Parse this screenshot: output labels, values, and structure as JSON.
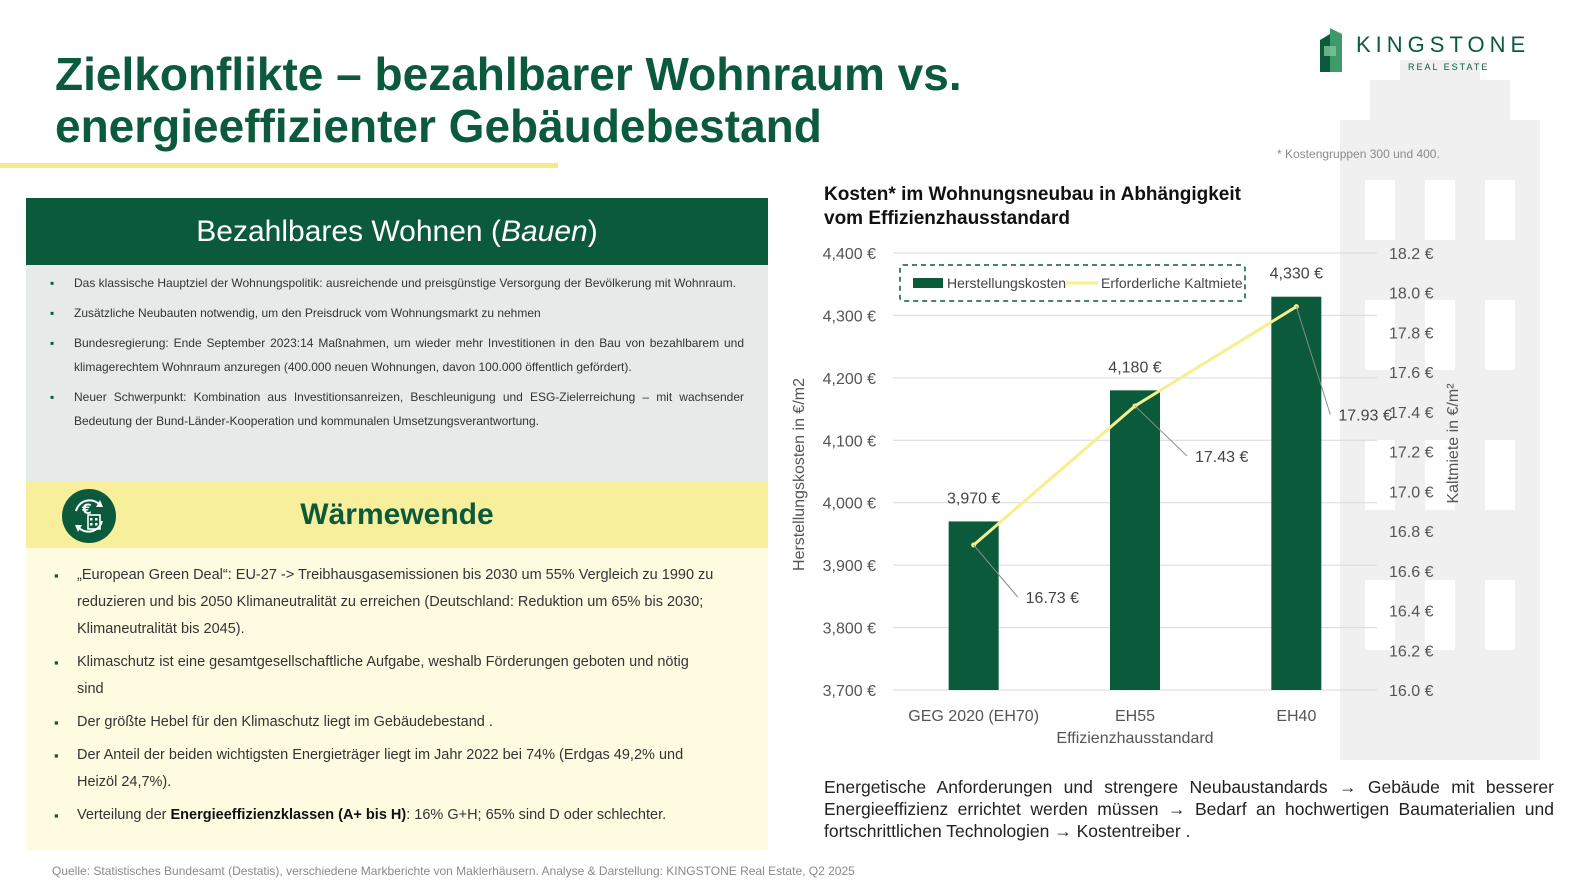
{
  "header": {
    "title_line1": "Zielkonflikte – bezahlbarer Wohnraum vs.",
    "title_line2": "energieeffizienter Gebäudebestand",
    "logo_name": "KINGSTONE",
    "logo_sub": "REAL ESTATE"
  },
  "footnote": "* Kostengruppen 300 und 400.",
  "panel_bauen": {
    "title_prefix": "Bezahlbares Wohnen (",
    "title_italic": "Bauen",
    "title_suffix": ")",
    "bullets": [
      "Das klassische Hauptziel der Wohnungspolitik: ausreichende und preisgünstige Versorgung der Bevölkerung mit Wohnraum.",
      "Zusätzliche Neubauten notwendig, um den Preisdruck vom Wohnungsmarkt zu nehmen",
      "Bundesregierung: Ende September 2023:14 Maßnahmen, um wieder mehr Investitionen in den Bau von bezahlbarem und klimagerechtem Wohnraum anzuregen (400.000 neuen Wohnungen, davon 100.000 öffentlich gefördert).",
      "Neuer Schwerpunkt: Kombination aus Investitionsanreizen, Beschleunigung und ESG-Zielerreichung – mit wachsender Bedeutung der Bund-Länder-Kooperation und kommunalen Umsetzungsverantwortung."
    ]
  },
  "panel_waerme": {
    "title": "Wärmewende",
    "icon": "euro-building-cycle-icon",
    "bullets": [
      "„European Green Deal“:  EU-27 -> Treibhausgasemissionen bis 2030 um 55% Vergleich zu 1990 zu reduzieren und bis 2050 Klimaneutralität zu erreichen (Deutschland: Reduktion um 65% bis 2030; Klimaneutralität bis 2045).",
      "Klimaschutz ist eine gesamtgesellschaftliche Aufgabe, weshalb Förderungen geboten und nötig sind",
      "Der größte Hebel für den Klimaschutz liegt im Gebäudebestand .",
      "Der Anteil der beiden wichtigsten Energieträger liegt im Jahr 2022 bei 74% (Erdgas 49,2% und Heizöl 24,7%)."
    ],
    "last_bullet_pre": "Verteilung der ",
    "last_bullet_bold": "Energieeffizienzklassen (A+ bis H)",
    "last_bullet_post": ": 16% G+H; 65% sind D oder schlechter."
  },
  "source": "Quelle: Statistisches Bundesamt (Destatis), verschiedene Markberichte von Maklerhäusern. Analyse & Darstellung: KINGSTONE Real Estate, Q2 2025",
  "chart_title_line1": "Kosten* im Wohnungsneubau in Abhängigkeit",
  "chart_title_line2": "vom Effizienzhausstandard",
  "conclusion": {
    "p1": "Energetische Anforderungen und strengere Neubaustandards",
    "p2": "Gebäude mit besserer Energieeffizienz  errichtet werden müssen",
    "p3": "Bedarf  an hochwertigen  Baumaterialien und  fortschrittlichen Technologien",
    "p4": "Kostentreiber .",
    "arrow": "→"
  },
  "colors": {
    "brand_green": "#0b5a3b",
    "accent_yellow": "#f8ef9c",
    "line_yellow": "#f7ee8c"
  },
  "chart_data": {
    "type": "bar",
    "title": "Kosten* im Wohnungsneubau in Abhängigkeit vom Effizienzhausstandard",
    "categories": [
      "GEG 2020 (EH70)",
      "EH55",
      "EH40"
    ],
    "xlabel": "Effizienzhausstandard",
    "ylabel": "Herstellungskosten in €/m2",
    "y2label": "Kaltmiete in €/m²",
    "ylim": [
      3700,
      4400
    ],
    "y_ticks": [
      3700,
      3800,
      3900,
      4000,
      4100,
      4200,
      4300,
      4400
    ],
    "y_tick_labels": [
      "3,700 €",
      "3,800 €",
      "3,900 €",
      "4,000 €",
      "4,100 €",
      "4,200 €",
      "4,300 €",
      "4,400 €"
    ],
    "y2lim": [
      16.0,
      18.2
    ],
    "y2_ticks": [
      16.0,
      16.2,
      16.4,
      16.6,
      16.8,
      17.0,
      17.2,
      17.4,
      17.6,
      17.8,
      18.0,
      18.2
    ],
    "y2_tick_labels": [
      "16.0 €",
      "16.2 €",
      "16.4 €",
      "16.6 €",
      "16.8 €",
      "17.0 €",
      "17.2 €",
      "17.4 €",
      "17.6 €",
      "17.8 €",
      "18.0 €",
      "18.2 €"
    ],
    "series": [
      {
        "name": "Herstellungskosten",
        "type": "bar",
        "axis": "left",
        "color": "#0b5a3b",
        "values": [
          3970,
          4180,
          4330
        ],
        "labels": [
          "3,970 €",
          "4,180 €",
          "4,330 €"
        ]
      },
      {
        "name": "Erforderliche Kaltmiete",
        "type": "line",
        "axis": "right",
        "color": "#f7ee8c",
        "values": [
          16.73,
          17.43,
          17.93
        ],
        "labels": [
          "16.73 €",
          "17.43 €",
          "17.93 €"
        ]
      }
    ],
    "legend": "top-left",
    "grid": true
  }
}
